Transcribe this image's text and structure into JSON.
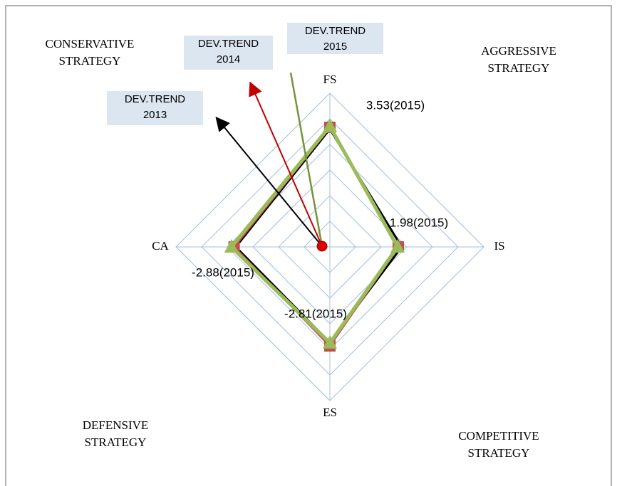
{
  "chart_data": {
    "type": "radar",
    "categories": [
      "FS",
      "IS",
      "ES",
      "CA"
    ],
    "rlim": [
      0,
      4.5
    ],
    "rticks": [
      0.75,
      1.5,
      2.25,
      3,
      3.75,
      4.5
    ],
    "grid": true,
    "series": [
      {
        "color": "#000000",
        "marker": "none",
        "values": [
          3.45,
          2.1,
          -2.8,
          -2.75
        ]
      },
      {
        "color": "#c0504d",
        "marker": "square",
        "values": [
          3.5,
          2.0,
          -2.9,
          -2.8
        ]
      },
      {
        "color": "#9bbb59",
        "marker": "triangle",
        "values": [
          3.53,
          1.98,
          -2.81,
          -2.88
        ],
        "value_labels": [
          "3.53(2015)",
          "1.98(2015)",
          "-2.81(2015)",
          "-2.88(2015)"
        ]
      }
    ],
    "quadrants": [
      "CONSERVATIVE\nSTRATEGY",
      "AGGRESSIVE\nSTRATEGY",
      "DEFENSIVE\nSTRATEGY",
      "COMPETITIVE\nSTRATEGY"
    ],
    "annotations": [
      "DEV.TREND\n2013",
      "DEV.TREND\n2014",
      "DEV.TREND\n2015"
    ]
  }
}
